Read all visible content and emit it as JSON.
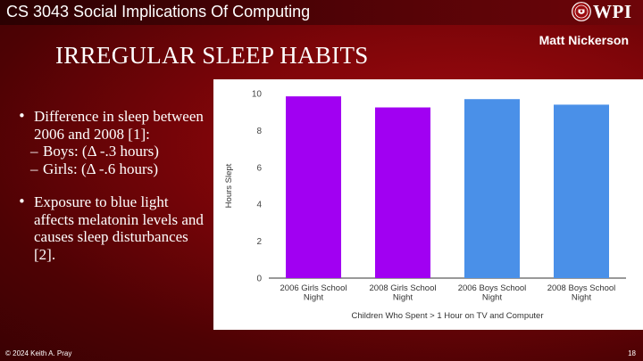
{
  "header": {
    "course_title": "CS 3043 Social Implications Of Computing",
    "logo_text": "WPI",
    "logo_icon": "wpi-seal-icon"
  },
  "author": "Matt Nickerson",
  "slide_title": "IRREGULAR SLEEP HABITS",
  "bullets": [
    {
      "text": "Difference in sleep between 2006 and 2008 [1]:",
      "subs": [
        "Boys: (Δ -.3 hours)",
        "Girls: (Δ -.6 hours)"
      ]
    },
    {
      "text": "Exposure to blue light affects melatonin levels and causes sleep disturbances [2].",
      "subs": []
    }
  ],
  "chart_data": {
    "type": "bar",
    "categories": [
      [
        "2006 Girls School",
        "Night"
      ],
      [
        "2008 Girls School",
        "Night"
      ],
      [
        "2006 Boys School",
        "Night"
      ],
      [
        "2008 Boys School",
        "Night"
      ]
    ],
    "values": [
      9.85,
      9.25,
      9.7,
      9.4
    ],
    "colors": [
      "#a100f2",
      "#a100f2",
      "#4a90e8",
      "#4a90e8"
    ],
    "xlabel": "Children Who Spent > 1 Hour on TV and Computer",
    "ylabel": "Hours Slept",
    "ylim": [
      0,
      10
    ],
    "yticks": [
      0,
      2,
      4,
      6,
      8,
      10
    ],
    "grid": false,
    "legend": "none"
  },
  "footer": {
    "copyright": "© 2024 Keith A. Pray",
    "page_number": "18"
  }
}
